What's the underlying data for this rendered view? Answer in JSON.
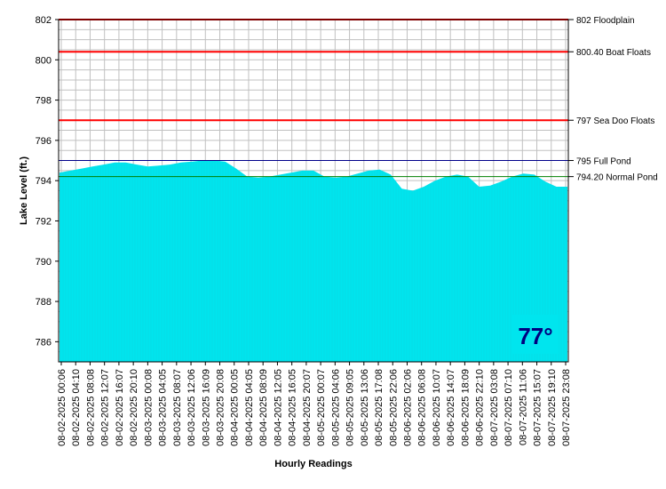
{
  "chart_data": {
    "type": "area",
    "title": "",
    "xlabel": "Hourly Readings",
    "ylabel": "Lake Level (ft.)",
    "ylim": [
      785,
      802
    ],
    "yticks": [
      786,
      788,
      790,
      792,
      794,
      796,
      798,
      800,
      802
    ],
    "grid": true,
    "fill_color": "#00e5ee",
    "x_tick_labels": [
      "08-02-2025 00:06",
      "08-02-2025 04:10",
      "08-02-2025 08:08",
      "08-02-2025 12:07",
      "08-02-2025 16:07",
      "08-02-2025 20:10",
      "08-03-2025 00:08",
      "08-03-2025 04:05",
      "08-03-2025 08:07",
      "08-03-2025 12:06",
      "08-03-2025 16:09",
      "08-03-2025 20:08",
      "08-04-2025 00:05",
      "08-04-2025 04:05",
      "08-04-2025 08:09",
      "08-04-2025 12:05",
      "08-04-2025 16:05",
      "08-04-2025 20:07",
      "08-05-2025 00:07",
      "08-05-2025 04:06",
      "08-05-2025 09:05",
      "08-05-2025 13:06",
      "08-05-2025 17:08",
      "08-05-2025 22:06",
      "08-06-2025 02:06",
      "08-06-2025 06:08",
      "08-06-2025 10:07",
      "08-06-2025 14:07",
      "08-06-2025 18:09",
      "08-06-2025 22:10",
      "08-07-2025 03:08",
      "08-07-2025 07:10",
      "08-07-2025 11:06",
      "08-07-2025 15:07",
      "08-07-2025 19:10",
      "08-07-2025 23:08"
    ],
    "series": [
      {
        "name": "",
        "values": [
          794.4,
          794.5,
          794.6,
          794.7,
          794.8,
          794.9,
          794.9,
          794.8,
          794.7,
          794.75,
          794.8,
          794.9,
          794.95,
          795.0,
          795.0,
          794.95,
          794.6,
          794.2,
          794.15,
          794.2,
          794.3,
          794.4,
          794.5,
          794.5,
          794.2,
          794.15,
          794.2,
          794.35,
          794.5,
          794.55,
          794.3,
          793.6,
          793.5,
          793.7,
          794.0,
          794.2,
          794.3,
          794.2,
          793.7,
          793.75,
          793.95,
          794.2,
          794.35,
          794.3,
          793.95,
          793.7,
          793.7
        ]
      }
    ],
    "reference_lines": [
      {
        "value": 802,
        "label": "802 Floodplain",
        "color": "#ff0000"
      },
      {
        "value": 800.4,
        "label": "800.40 Boat Floats",
        "color": "#ff0000"
      },
      {
        "value": 797,
        "label": "797 Sea Doo Floats",
        "color": "#ff0000"
      },
      {
        "value": 795,
        "label": "795 Full Pond",
        "color": "#00008b"
      },
      {
        "value": 794.2,
        "label": "794.20 Normal Pond",
        "color": "#008000"
      }
    ],
    "badge": {
      "text": "77°",
      "background": "#00e5ee",
      "color": "#000080"
    }
  }
}
